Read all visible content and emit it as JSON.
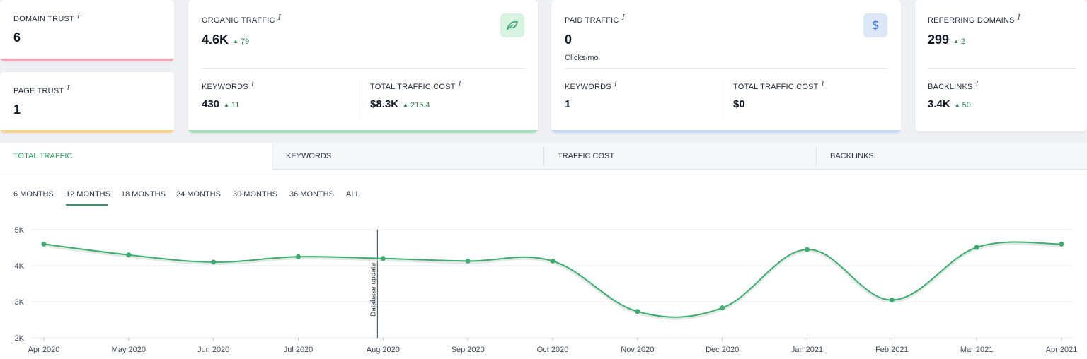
{
  "domain_trust": {
    "label": "DOMAIN TRUST",
    "value": "6",
    "bar_color": "#f3a9b8"
  },
  "page_trust": {
    "label": "PAGE TRUST",
    "value": "1",
    "bar_color": "#f4d58a"
  },
  "organic": {
    "label": "ORGANIC TRAFFIC",
    "value": "4.6K",
    "delta": "79",
    "icon": "leaf-icon",
    "keywords_label": "KEYWORDS",
    "keywords_value": "430",
    "keywords_delta": "11",
    "cost_label": "TOTAL TRAFFIC COST",
    "cost_value": "$8.3K",
    "cost_delta": "215.4",
    "bar_color": "#a8e0b8"
  },
  "paid": {
    "label": "PAID TRAFFIC",
    "value": "0",
    "sub": "Clicks/mo",
    "icon": "dollar-icon",
    "keywords_label": "KEYWORDS",
    "keywords_value": "1",
    "cost_label": "TOTAL TRAFFIC COST",
    "cost_value": "$0",
    "bar_color": "#c5daf3"
  },
  "referring": {
    "label": "REFERRING DOMAINS",
    "value": "299",
    "delta": "2",
    "backlinks_label": "BACKLINKS",
    "backlinks_value": "3.4K",
    "backlinks_delta": "50"
  },
  "info_glyph": "i",
  "up_glyph": "▲",
  "tabs": [
    {
      "label": "TOTAL TRAFFIC"
    },
    {
      "label": "KEYWORDS"
    },
    {
      "label": "TRAFFIC COST"
    },
    {
      "label": "BACKLINKS"
    }
  ],
  "ranges": [
    {
      "label": "6 MONTHS"
    },
    {
      "label": "12 MONTHS"
    },
    {
      "label": "18 MONTHS"
    },
    {
      "label": "24 MONTHS"
    },
    {
      "label": "30 MONTHS"
    },
    {
      "label": "36 MONTHS"
    },
    {
      "label": "ALL"
    }
  ],
  "accent": "#2e9a62",
  "chart_data": {
    "type": "line",
    "x": [
      "Apr 2020",
      "May 2020",
      "Jun 2020",
      "Jul 2020",
      "Aug 2020",
      "Sep 2020",
      "Oct 2020",
      "Nov 2020",
      "Dec 2020",
      "Jan 2021",
      "Feb 2021",
      "Mar 2021",
      "Apr 2021"
    ],
    "series": [
      {
        "values": [
          4600,
          4300,
          4100,
          4250,
          4200,
          4130,
          4130,
          2730,
          2830,
          4450,
          3050,
          4510,
          4600
        ],
        "color": "#3cad6e"
      }
    ],
    "yticks": [
      "5K",
      "4K",
      "3K",
      "2K"
    ],
    "ytick_values": [
      5000,
      4000,
      3000,
      2000
    ],
    "ylim": [
      2000,
      5000
    ],
    "annotation": {
      "label": "Database update",
      "at": "Aug 2020"
    },
    "grid": true
  }
}
